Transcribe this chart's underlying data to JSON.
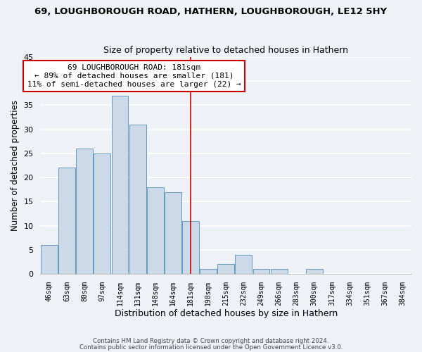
{
  "title": "69, LOUGHBOROUGH ROAD, HATHERN, LOUGHBOROUGH, LE12 5HY",
  "subtitle": "Size of property relative to detached houses in Hathern",
  "xlabel": "Distribution of detached houses by size in Hathern",
  "ylabel": "Number of detached properties",
  "bin_labels": [
    "46sqm",
    "63sqm",
    "80sqm",
    "97sqm",
    "114sqm",
    "131sqm",
    "148sqm",
    "164sqm",
    "181sqm",
    "198sqm",
    "215sqm",
    "232sqm",
    "249sqm",
    "266sqm",
    "283sqm",
    "300sqm",
    "317sqm",
    "334sqm",
    "351sqm",
    "367sqm",
    "384sqm"
  ],
  "bar_heights": [
    6,
    22,
    26,
    25,
    37,
    31,
    18,
    17,
    11,
    1,
    2,
    4,
    1,
    1,
    0,
    1,
    0,
    0,
    0,
    0,
    0
  ],
  "bar_color": "#ccd9e8",
  "bar_edge_color": "#6699bb",
  "highlight_line_index": 8,
  "highlight_line_color": "#cc0000",
  "ylim": [
    0,
    45
  ],
  "yticks": [
    0,
    5,
    10,
    15,
    20,
    25,
    30,
    35,
    40,
    45
  ],
  "annotation_line1": "69 LOUGHBOROUGH ROAD: 181sqm",
  "annotation_line2": "← 89% of detached houses are smaller (181)",
  "annotation_line3": "11% of semi-detached houses are larger (22) →",
  "annotation_box_color": "#ffffff",
  "annotation_box_edge": "#cc0000",
  "footer_line1": "Contains HM Land Registry data © Crown copyright and database right 2024.",
  "footer_line2": "Contains public sector information licensed under the Open Government Licence v3.0.",
  "background_color": "#eef2f7",
  "grid_color": "#ffffff"
}
